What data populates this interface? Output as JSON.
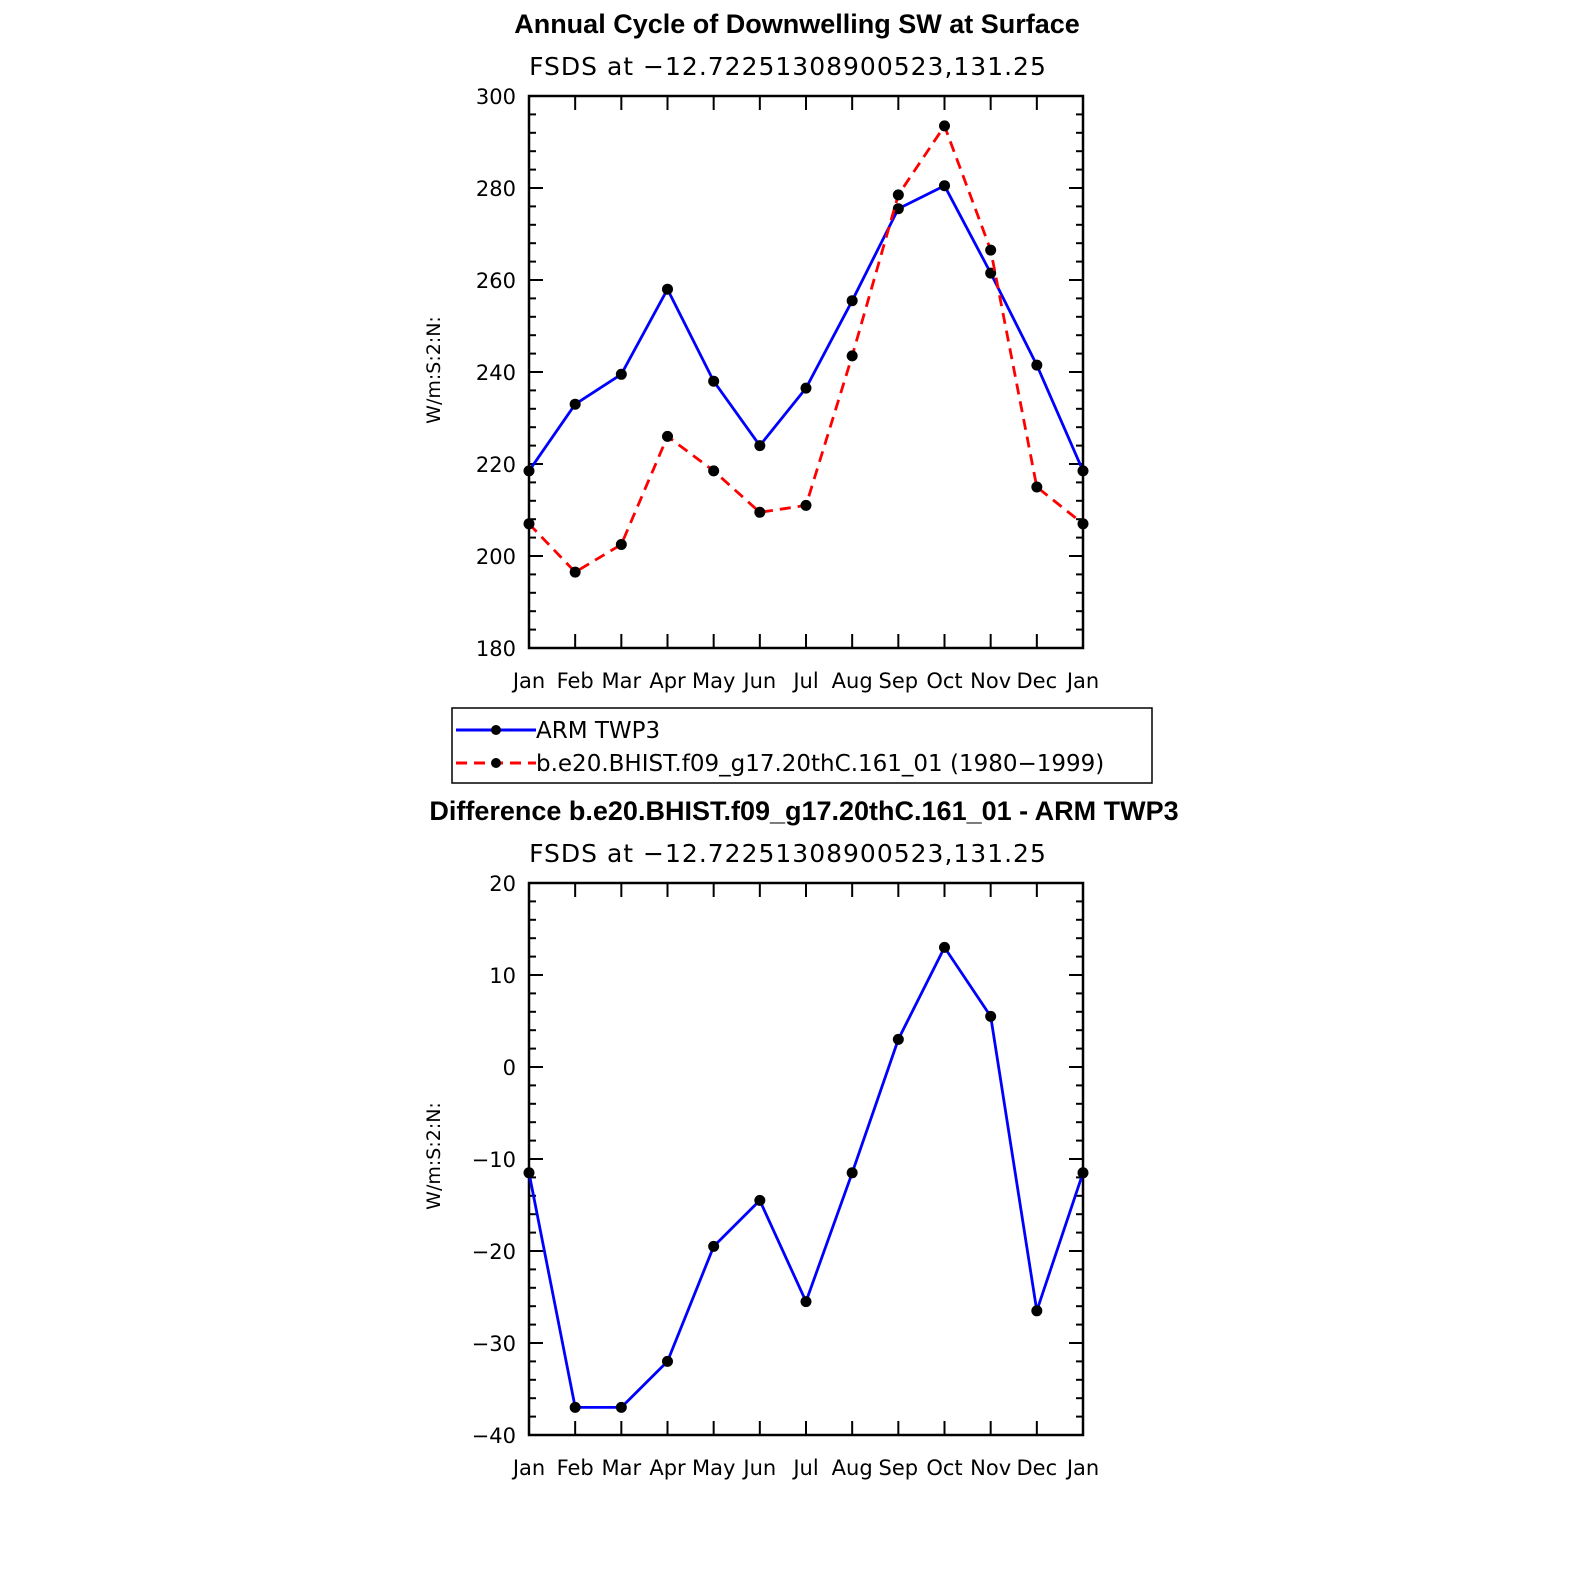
{
  "chart_data": [
    {
      "type": "line",
      "title": "Annual Cycle of Downwelling SW at Surface",
      "subtitle": "FSDS at −12.72251308900523,131.25",
      "ylabel": "W/m:S:2:N:",
      "categories": [
        "Jan",
        "Feb",
        "Mar",
        "Apr",
        "May",
        "Jun",
        "Jul",
        "Aug",
        "Sep",
        "Oct",
        "Nov",
        "Dec",
        "Jan"
      ],
      "ylim": [
        180,
        300
      ],
      "yticks": [
        180,
        200,
        220,
        240,
        260,
        280,
        300
      ],
      "series": [
        {
          "name": "ARM TWP3",
          "color": "#0000ff",
          "dash": "solid",
          "values": [
            218.5,
            233,
            239.5,
            258,
            238,
            224,
            236.5,
            255.5,
            275.5,
            280.5,
            261.5,
            241.5,
            218.5
          ]
        },
        {
          "name": "b.e20.BHIST.f09_g17.20thC.161_01 (1980−1999)",
          "color": "#ff0000",
          "dash": "dashed",
          "values": [
            207,
            196.5,
            202.5,
            226,
            218.5,
            209.5,
            211,
            243.5,
            278.5,
            293.5,
            266.5,
            215,
            207
          ]
        }
      ]
    },
    {
      "type": "line",
      "title": "Difference b.e20.BHIST.f09_g17.20thC.161_01 - ARM TWP3",
      "subtitle": "FSDS at −12.72251308900523,131.25",
      "ylabel": "W/m:S:2:N:",
      "categories": [
        "Jan",
        "Feb",
        "Mar",
        "Apr",
        "May",
        "Jun",
        "Jul",
        "Aug",
        "Sep",
        "Oct",
        "Nov",
        "Dec",
        "Jan"
      ],
      "ylim": [
        -40,
        20
      ],
      "yticks": [
        -40,
        -30,
        -20,
        -10,
        0,
        10,
        20
      ],
      "series": [
        {
          "color": "#0000ff",
          "dash": "solid",
          "values": [
            -11.5,
            -37,
            -37,
            -32,
            -19.5,
            -14.5,
            -25.5,
            -11.5,
            3,
            13,
            5.5,
            -26.5,
            -11.5
          ]
        }
      ]
    }
  ]
}
